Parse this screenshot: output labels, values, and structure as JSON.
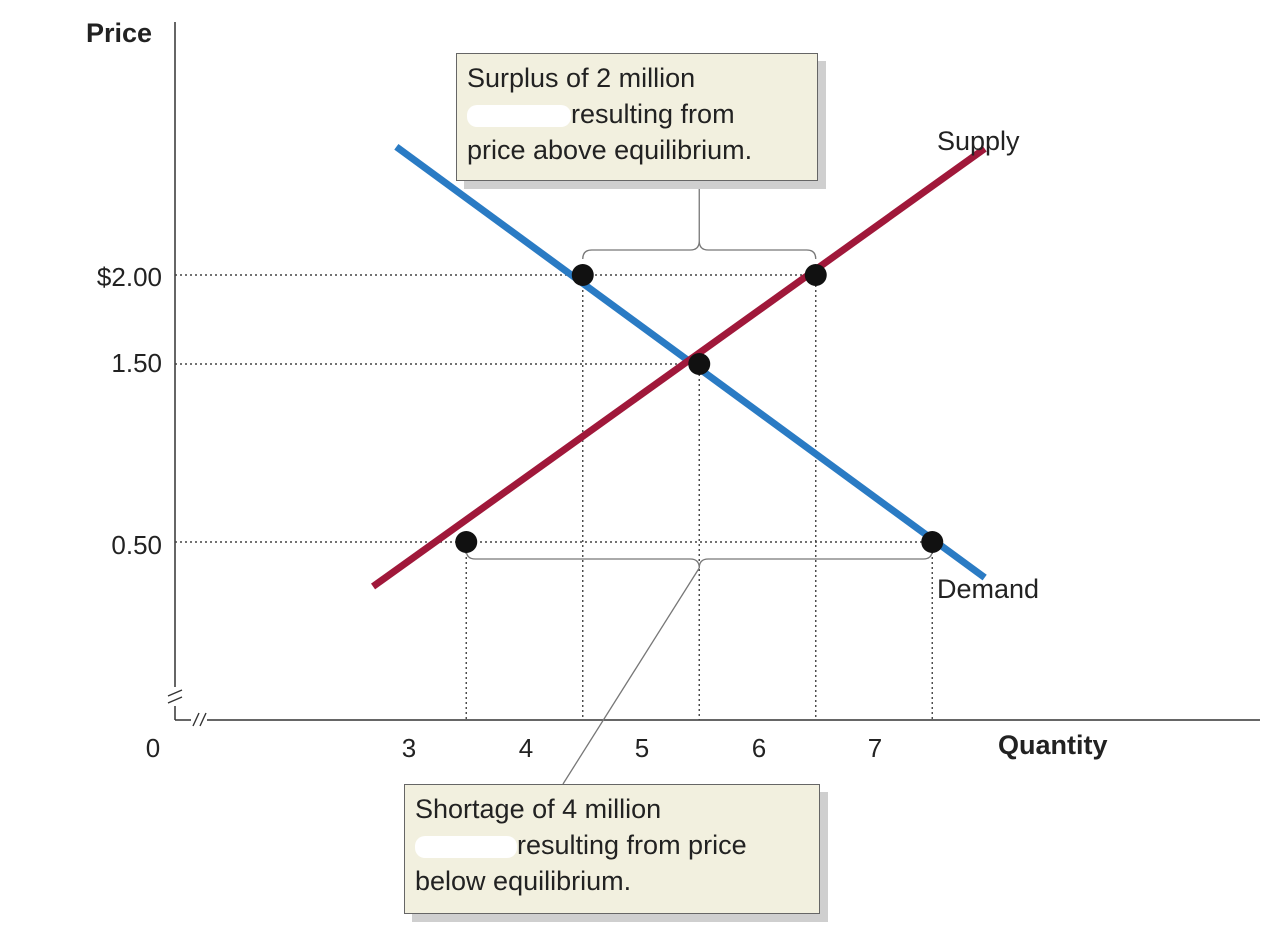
{
  "chart_data": {
    "type": "line",
    "xlabel": "Quantity",
    "ylabel": "Price",
    "origin_label": "0",
    "x_ticks": [
      3,
      4,
      5,
      6,
      7
    ],
    "x_tick_labels": [
      "3",
      "4",
      "5",
      "6",
      "7"
    ],
    "y_ticks": [
      0.5,
      1.5,
      2.0
    ],
    "y_tick_labels": [
      "0.50",
      "1.50",
      "$2.00"
    ],
    "xlim": [
      2.2,
      8.5
    ],
    "ylim": [
      -0.5,
      2.7
    ],
    "axis_break": true,
    "grid": false,
    "series": [
      {
        "name": "Supply",
        "color": "#a0183a",
        "x": [
          2.2,
          7.45
        ],
        "y": [
          0.25,
          2.71
        ],
        "points": [
          {
            "x": 3,
            "y": 0.5
          },
          {
            "x": 5,
            "y": 1.5
          },
          {
            "x": 6,
            "y": 2.0
          }
        ]
      },
      {
        "name": "Demand",
        "color": "#2a7bc4",
        "x": [
          2.4,
          7.45
        ],
        "y": [
          2.72,
          0.3
        ],
        "points": [
          {
            "x": 4,
            "y": 2.0
          },
          {
            "x": 7,
            "y": 0.5
          }
        ]
      }
    ],
    "guides": [
      {
        "y": 2.0,
        "x_to": 6
      },
      {
        "y": 1.5,
        "x_to": 5
      },
      {
        "y": 0.5,
        "x_to": 7
      }
    ],
    "annotations": {
      "surplus": {
        "line1": "Surplus of 2 million",
        "line2": "resulting from",
        "line3": "price above equilibrium.",
        "bracket_from": 4,
        "bracket_to": 6,
        "bracket_y": 2.0
      },
      "shortage": {
        "line1": "Shortage of 4 million",
        "line2": "resulting from price",
        "line3": "below equilibrium.",
        "bracket_from": 3,
        "bracket_to": 7,
        "bracket_y": 0.5
      }
    },
    "colors": {
      "callout_bg": "#f2f0df",
      "dot": "#111111",
      "axis": "#333333"
    }
  }
}
